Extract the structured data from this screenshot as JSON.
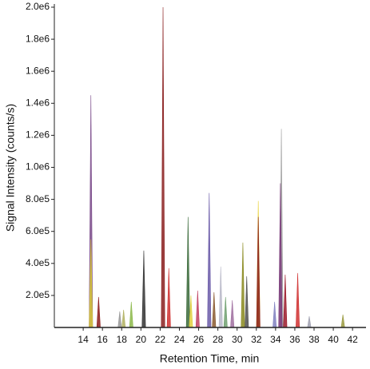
{
  "chart_data": {
    "type": "peaks",
    "x_label": "Retention Time, min",
    "y_label": "Signal Intensity (counts/s)",
    "xlim": [
      11,
      43.4
    ],
    "ylim": [
      0,
      2000000
    ],
    "xticks": [
      14,
      16,
      18,
      20,
      22,
      24,
      26,
      28,
      30,
      32,
      34,
      36,
      38,
      40,
      42
    ],
    "yticks": [
      {
        "value": 200000,
        "label": "2.0e5"
      },
      {
        "value": 400000,
        "label": "4.0e5"
      },
      {
        "value": 600000,
        "label": "6.0e5"
      },
      {
        "value": 800000,
        "label": "8.0e5"
      },
      {
        "value": 1000000,
        "label": "1.0e6"
      },
      {
        "value": 1200000,
        "label": "1.2e6"
      },
      {
        "value": 1400000,
        "label": "1.4e6"
      },
      {
        "value": 1600000,
        "label": "1.6e6"
      },
      {
        "value": 1800000,
        "label": "1.8e6"
      },
      {
        "value": 2000000,
        "label": "2.0e6"
      }
    ],
    "x": [
      14.8,
      14.8,
      15.6,
      17.8,
      18.2,
      19.0,
      20.3,
      22.3,
      22.9,
      24.9,
      25.2,
      25.9,
      27.1,
      27.6,
      28.3,
      28.8,
      29.5,
      30.6,
      31.0,
      32.2,
      32.2,
      33.9,
      34.6,
      34.5,
      35.0,
      36.3,
      37.5,
      41.0
    ],
    "values": [
      1450000,
      550000,
      190000,
      100000,
      110000,
      160000,
      480000,
      2000000,
      370000,
      690000,
      200000,
      230000,
      840000,
      220000,
      380000,
      190000,
      170000,
      530000,
      320000,
      790000,
      690000,
      160000,
      1240000,
      900000,
      330000,
      340000,
      70000,
      80000
    ],
    "colors": [
      "#7a4a8a",
      "#d8c83a",
      "#8b1a1a",
      "#999999",
      "#b0b060",
      "#8cb84a",
      "#333333",
      "#8b2020",
      "#d03030",
      "#3a6a3a",
      "#e0d040",
      "#c04060",
      "#6a5aa8",
      "#8a5a30",
      "#b8b8c8",
      "#70a070",
      "#a070a0",
      "#8a8a20",
      "#505050",
      "#e8d030",
      "#8b2020",
      "#8080c0",
      "#a0a0a0",
      "#7a3a7a",
      "#9b1a2a",
      "#d03030",
      "#a0a0b0",
      "#9a9a40"
    ]
  }
}
